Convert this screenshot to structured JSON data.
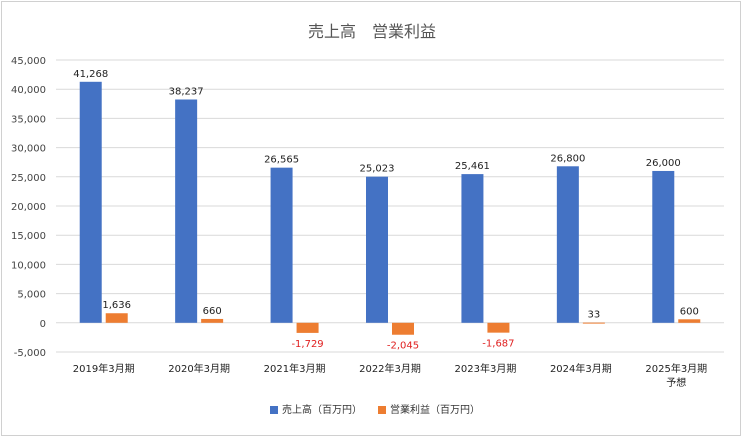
{
  "chart_data": {
    "type": "bar",
    "title": "売上高　営業利益",
    "categories": [
      "2019年3月期",
      "2020年3月期",
      "2021年3月期",
      "2022年3月期",
      "2023年3月期",
      "2024年3月期",
      "2025年3月期\n予想"
    ],
    "series": [
      {
        "name": "売上高（百万円）",
        "color": "#4472c4",
        "values": [
          41268,
          38237,
          26565,
          25023,
          25461,
          26800,
          26000
        ]
      },
      {
        "name": "営業利益（百万円）",
        "color": "#ed7d31",
        "values": [
          1636,
          660,
          -1729,
          -2045,
          -1687,
          33,
          600
        ]
      }
    ],
    "ylim": [
      -5000,
      45000
    ],
    "ytick_step": 5000,
    "grid": true,
    "legend": "bottom",
    "negative_label_color": "#e02020",
    "axis_color": "#d9d9d9"
  }
}
